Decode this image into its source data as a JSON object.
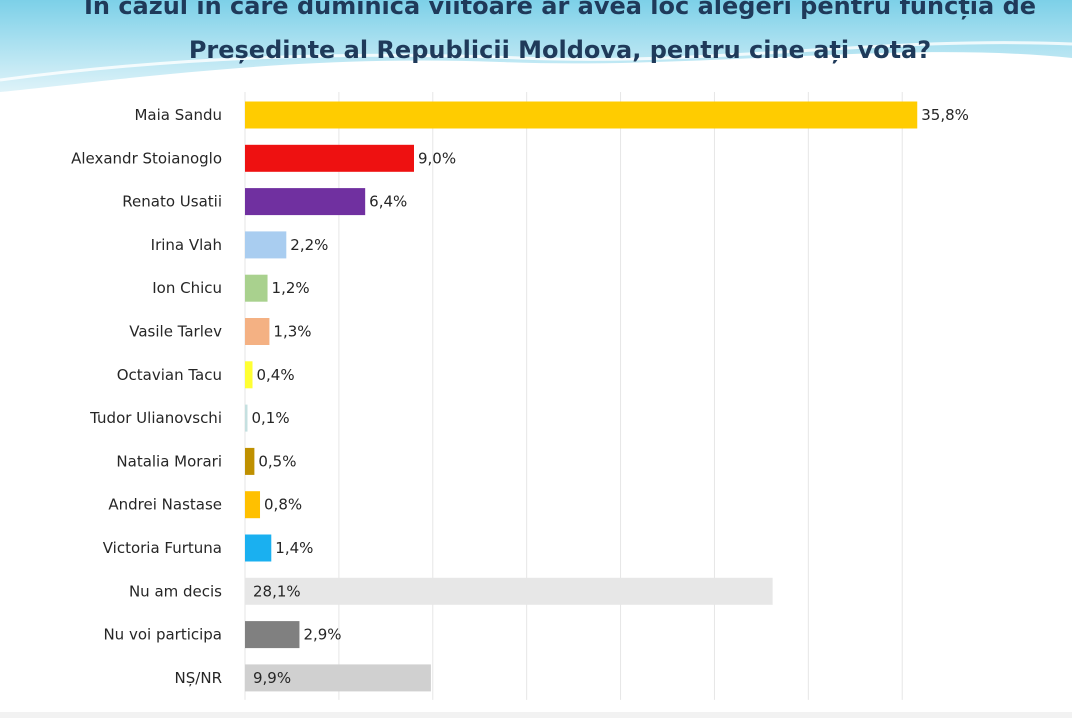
{
  "title": {
    "line1": "În cazul în care duminica viitoare ar avea loc alegeri pentru funcția de",
    "line2": "Președinte al Republicii Moldova, pentru cine ați vota?"
  },
  "chart_data": {
    "type": "bar",
    "orientation": "horizontal",
    "title": "În cazul în care duminica viitoare ar avea loc alegeri pentru funcția de Președinte al Republicii Moldova, pentru cine ați vota?",
    "categories": [
      "Maia Sandu",
      "Alexandr Stoianoglo",
      "Renato Usatii",
      "Irina Vlah",
      "Ion Chicu",
      "Vasile Tarlev",
      "Octavian Tacu",
      "Tudor Ulianovschi",
      "Natalia Morari",
      "Andrei Nastase",
      "Victoria Furtuna",
      "Nu am decis",
      "Nu voi participa",
      "NȘ/NR"
    ],
    "values": [
      35.8,
      9.0,
      6.4,
      2.2,
      1.2,
      1.3,
      0.4,
      0.1,
      0.5,
      0.8,
      1.4,
      28.1,
      2.9,
      9.9
    ],
    "value_labels": [
      "35,8%",
      "9,0%",
      "6,4%",
      "2,2%",
      "1,2%",
      "1,3%",
      "0,4%",
      "0,1%",
      "0,5%",
      "0,8%",
      "1,4%",
      "28,1%",
      "2,9%",
      "9,9%"
    ],
    "colors": [
      "#ffcc00",
      "#ee1111",
      "#7030a0",
      "#a9cdf0",
      "#a9d18e",
      "#f4b183",
      "#ffff33",
      "#c5e0e0",
      "#bf9000",
      "#ffc000",
      "#1ab0f0",
      "#e7e7e7",
      "#808080",
      "#d0d0d0"
    ],
    "xlim": [
      0,
      36
    ],
    "grid": true,
    "legend": "none"
  }
}
